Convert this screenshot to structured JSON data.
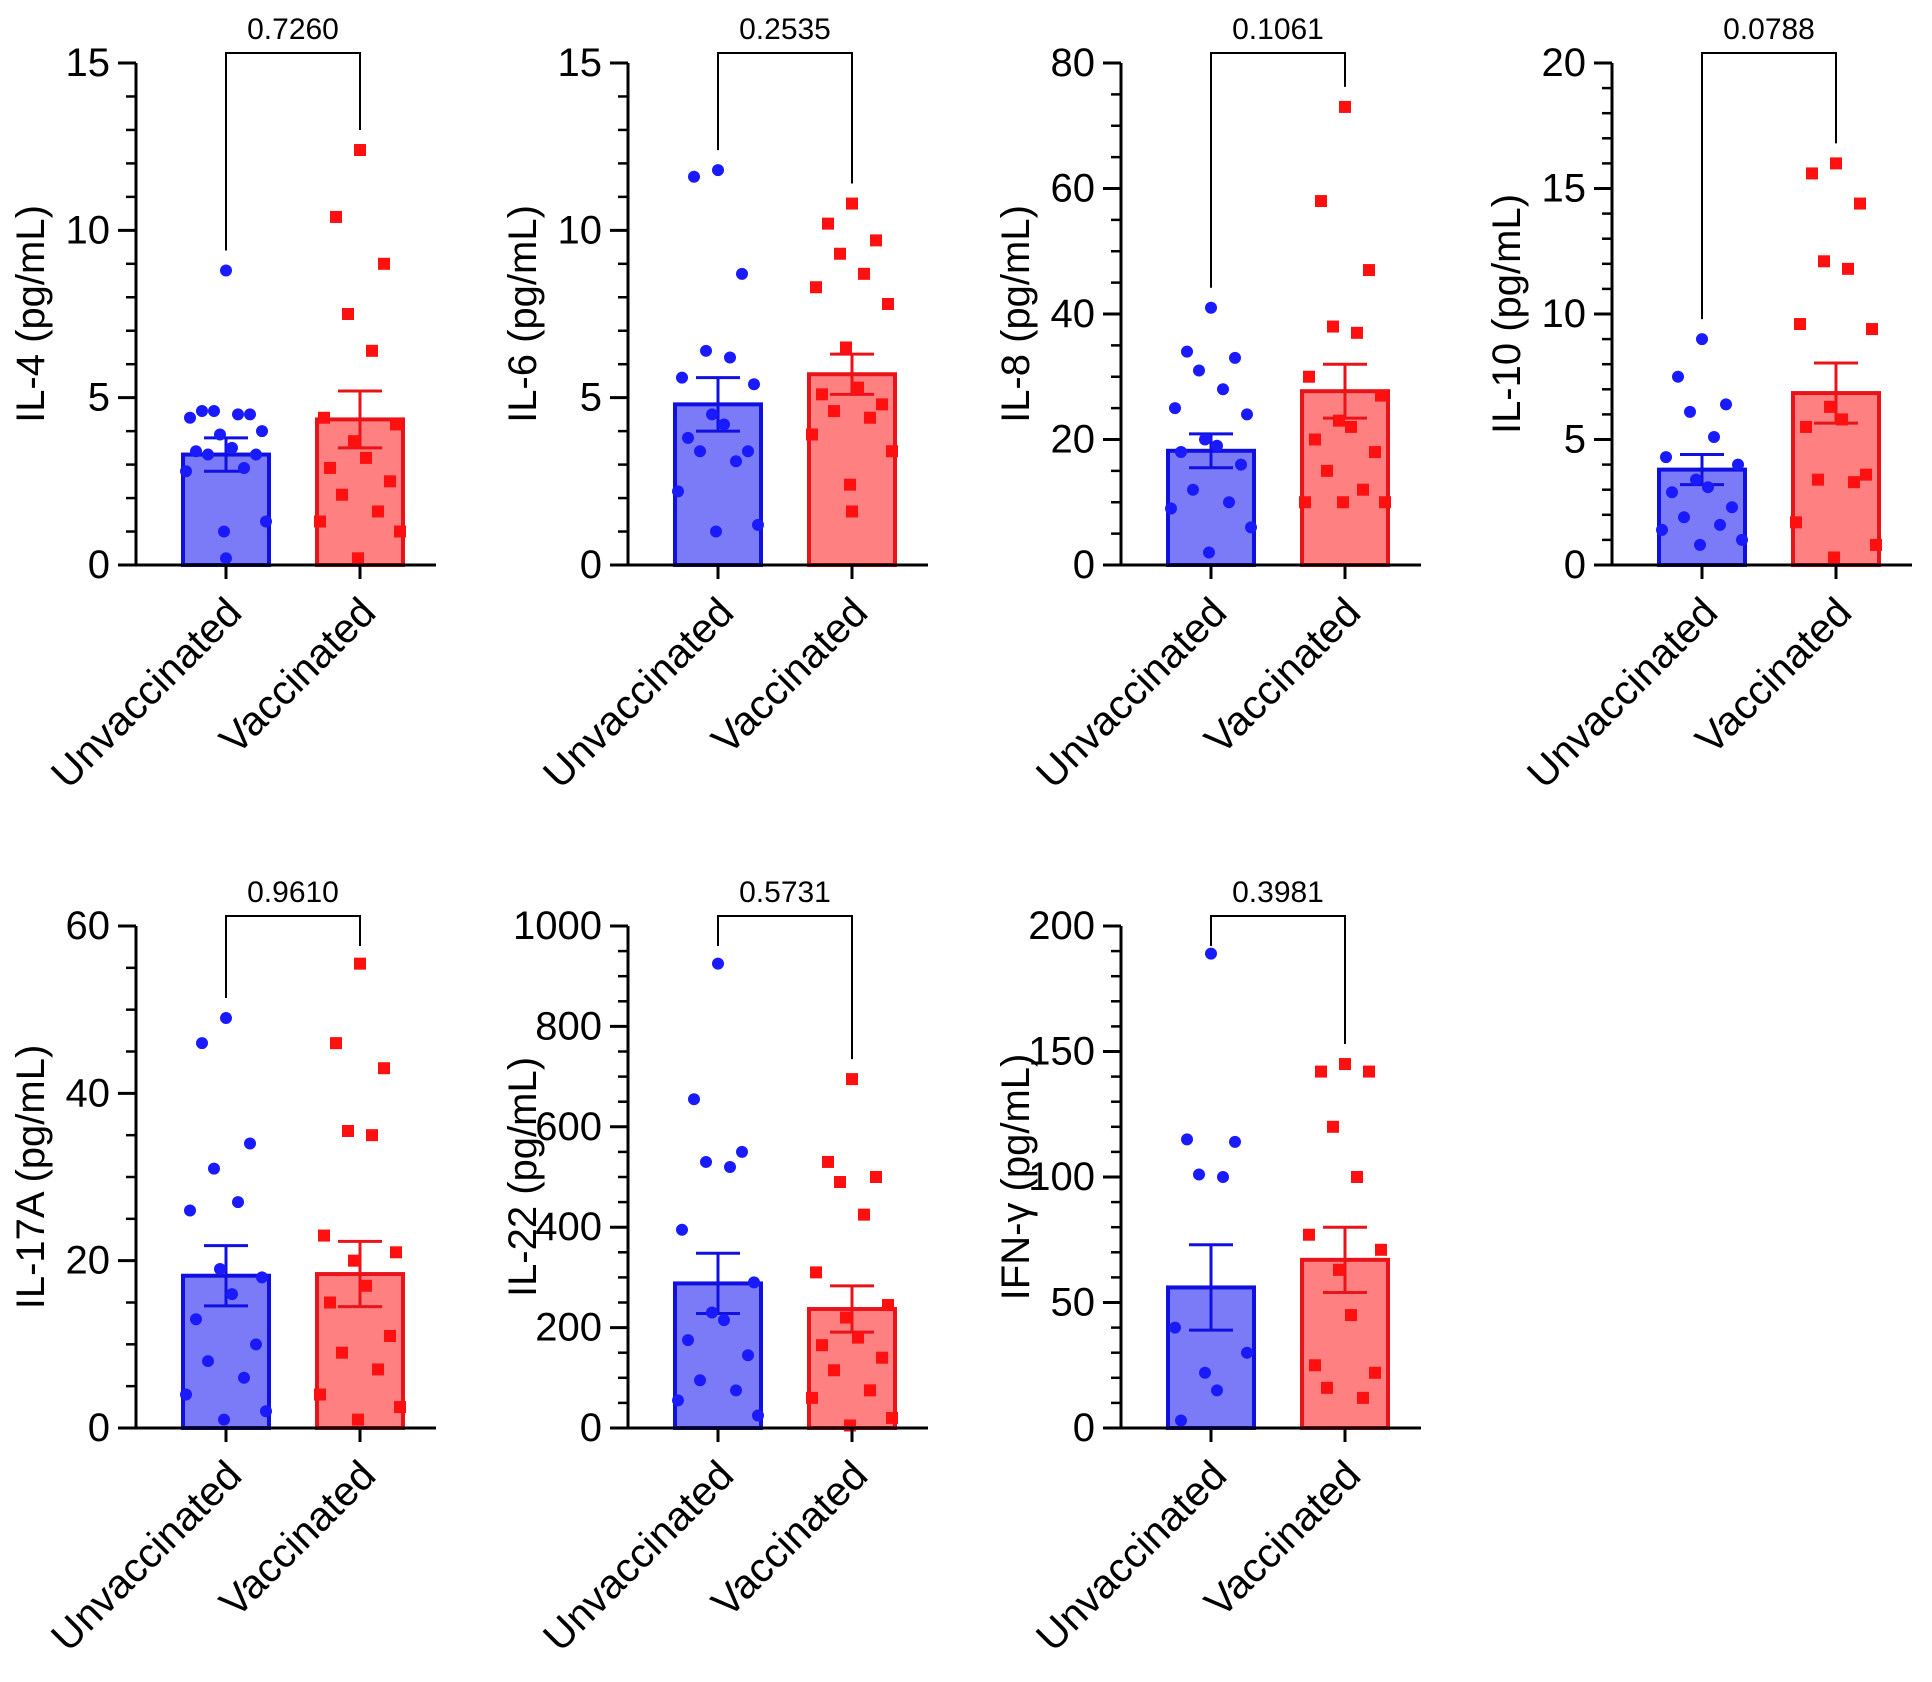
{
  "colors": {
    "unvaccinated_fill": "#7b7bf7",
    "unvaccinated_edge": "#1010e0",
    "unvaccinated_point": "#1a1aff",
    "vaccinated_fill": "#ff8080",
    "vaccinated_edge": "#e8141a",
    "vaccinated_point": "#ff1010",
    "axis": "#000000"
  },
  "chart_data": [
    {
      "type": "bar",
      "ylabel": "IL-4 (pg/mL)",
      "categories": [
        "Unvaccinated",
        "Vaccinated"
      ],
      "ylim": [
        0,
        15
      ],
      "yticks": [
        0,
        5,
        10,
        15
      ],
      "yticks_labels": [
        "0",
        "5",
        "10",
        "15"
      ],
      "minor_step": 1,
      "p_value": "0.7260",
      "series": [
        {
          "name": "Unvaccinated",
          "mean": 3.3,
          "sem": 0.5,
          "marker": "circle",
          "points": [
            8.8,
            4.6,
            4.5,
            4.6,
            4.5,
            4.4,
            4.0,
            3.9,
            3.5,
            3.4,
            3.3,
            3.3,
            2.9,
            2.8,
            1.3,
            1.0,
            0.2
          ]
        },
        {
          "name": "Vaccinated",
          "mean": 4.35,
          "sem": 0.85,
          "marker": "square",
          "points": [
            12.4,
            10.4,
            9.0,
            7.5,
            6.4,
            4.4,
            4.2,
            3.7,
            3.2,
            2.9,
            2.5,
            2.1,
            1.6,
            1.3,
            1.0,
            0.2
          ]
        }
      ]
    },
    {
      "type": "bar",
      "ylabel": "IL-6 (pg/mL)",
      "categories": [
        "Unvaccinated",
        "Vaccinated"
      ],
      "ylim": [
        0,
        15
      ],
      "yticks": [
        0,
        5,
        10,
        15
      ],
      "yticks_labels": [
        "0",
        "5",
        "10",
        "15"
      ],
      "minor_step": 1,
      "p_value": "0.2535",
      "series": [
        {
          "name": "Unvaccinated",
          "mean": 4.8,
          "sem": 0.8,
          "marker": "circle",
          "points": [
            11.8,
            11.6,
            8.7,
            6.4,
            6.2,
            5.6,
            5.4,
            4.5,
            4.2,
            3.8,
            3.4,
            3.4,
            3.1,
            2.2,
            1.2,
            1.0
          ]
        },
        {
          "name": "Vaccinated",
          "mean": 5.7,
          "sem": 0.6,
          "marker": "square",
          "points": [
            10.8,
            10.2,
            9.7,
            9.3,
            8.7,
            8.3,
            7.8,
            6.5,
            5.3,
            5.1,
            4.8,
            4.6,
            4.4,
            3.9,
            3.4,
            2.4,
            1.6
          ]
        }
      ]
    },
    {
      "type": "bar",
      "ylabel": "IL-8 (pg/mL)",
      "categories": [
        "Unvaccinated",
        "Vaccinated"
      ],
      "ylim": [
        0,
        80
      ],
      "yticks": [
        0,
        20,
        40,
        60,
        80
      ],
      "yticks_labels": [
        "0",
        "20",
        "40",
        "60",
        "80"
      ],
      "minor_step": 5,
      "p_value": "0.1061",
      "series": [
        {
          "name": "Unvaccinated",
          "mean": 18.2,
          "sem": 2.7,
          "marker": "circle",
          "points": [
            41,
            34,
            33,
            31,
            28,
            25,
            24,
            20,
            19,
            18,
            16,
            12,
            10,
            9,
            6,
            2
          ]
        },
        {
          "name": "Vaccinated",
          "mean": 27.7,
          "sem": 4.3,
          "marker": "square",
          "points": [
            73,
            58,
            47,
            38,
            37,
            30,
            27,
            23,
            22,
            20,
            18,
            15,
            12,
            10,
            10,
            10
          ]
        }
      ]
    },
    {
      "type": "bar",
      "ylabel": "IL-10 (pg/mL)",
      "categories": [
        "Unvaccinated",
        "Vaccinated"
      ],
      "ylim": [
        0,
        20
      ],
      "yticks": [
        0,
        5,
        10,
        15,
        20
      ],
      "yticks_labels": [
        "0",
        "5",
        "10",
        "15",
        "20"
      ],
      "minor_step": 1,
      "p_value": "0.0788",
      "series": [
        {
          "name": "Unvaccinated",
          "mean": 3.8,
          "sem": 0.6,
          "marker": "circle",
          "points": [
            9.0,
            7.5,
            6.4,
            6.1,
            5.1,
            4.3,
            4.0,
            3.4,
            3.1,
            2.9,
            2.3,
            1.9,
            1.6,
            1.4,
            1.0,
            0.8
          ]
        },
        {
          "name": "Vaccinated",
          "mean": 6.85,
          "sem": 1.2,
          "marker": "square",
          "points": [
            16.0,
            15.6,
            14.4,
            12.1,
            11.8,
            9.6,
            9.4,
            6.3,
            5.8,
            5.5,
            3.6,
            3.4,
            3.3,
            1.7,
            0.8,
            0.3
          ]
        }
      ]
    },
    {
      "type": "bar",
      "ylabel": "IL-17A (pg/mL)",
      "categories": [
        "Unvaccinated",
        "Vaccinated"
      ],
      "ylim": [
        0,
        60
      ],
      "yticks": [
        0,
        20,
        40,
        60
      ],
      "yticks_labels": [
        "0",
        "20",
        "40",
        "60"
      ],
      "minor_step": 5,
      "p_value": "0.9610",
      "series": [
        {
          "name": "Unvaccinated",
          "mean": 18.2,
          "sem": 3.6,
          "marker": "circle",
          "points": [
            49,
            46,
            34,
            31,
            27,
            26,
            18,
            19,
            16,
            13,
            10,
            8,
            6,
            4,
            2,
            1
          ]
        },
        {
          "name": "Vaccinated",
          "mean": 18.4,
          "sem": 3.9,
          "marker": "square",
          "points": [
            55.5,
            46,
            43,
            35.5,
            35,
            23,
            21,
            20,
            17,
            15,
            11,
            9,
            7,
            4,
            2.5,
            1
          ]
        }
      ]
    },
    {
      "type": "bar",
      "ylabel": "IL-22 (pg/mL)",
      "categories": [
        "Unvaccinated",
        "Vaccinated"
      ],
      "ylim": [
        0,
        1000
      ],
      "yticks": [
        0,
        200,
        400,
        600,
        800,
        1000
      ],
      "yticks_labels": [
        "0",
        "200",
        "400",
        "600",
        "800",
        "1000"
      ],
      "minor_step": 50,
      "p_value": "0.5731",
      "series": [
        {
          "name": "Unvaccinated",
          "mean": 288,
          "sem": 60,
          "marker": "circle",
          "points": [
            925,
            655,
            550,
            530,
            520,
            395,
            290,
            230,
            215,
            175,
            145,
            95,
            75,
            55,
            25
          ]
        },
        {
          "name": "Vaccinated",
          "mean": 237,
          "sem": 46,
          "marker": "square",
          "points": [
            695,
            530,
            500,
            490,
            425,
            310,
            245,
            220,
            180,
            165,
            140,
            115,
            75,
            60,
            20,
            5
          ]
        }
      ]
    },
    {
      "type": "bar",
      "ylabel": "IFN-γ (pg/mL)",
      "categories": [
        "Unvaccinated",
        "Vaccinated"
      ],
      "ylim": [
        0,
        200
      ],
      "yticks": [
        0,
        50,
        100,
        150,
        200
      ],
      "yticks_labels": [
        "0",
        "50",
        "100",
        "150",
        "200"
      ],
      "minor_step": 10,
      "p_value": "0.3981",
      "series": [
        {
          "name": "Unvaccinated",
          "mean": 56,
          "sem": 17,
          "marker": "circle",
          "points": [
            189,
            115,
            114,
            101,
            100,
            40,
            30,
            22,
            15,
            3
          ]
        },
        {
          "name": "Vaccinated",
          "mean": 67,
          "sem": 13,
          "marker": "square",
          "points": [
            145,
            142,
            142,
            120,
            100,
            77,
            71,
            63,
            45,
            25,
            22,
            16,
            12
          ]
        }
      ]
    }
  ]
}
